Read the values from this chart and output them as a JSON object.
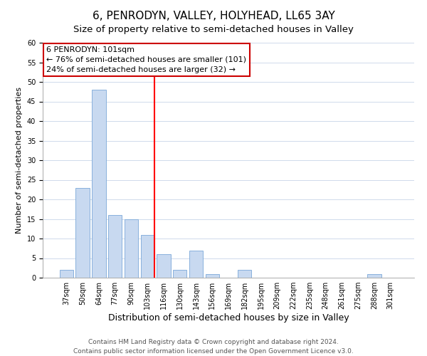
{
  "title": "6, PENRODYN, VALLEY, HOLYHEAD, LL65 3AY",
  "subtitle": "Size of property relative to semi-detached houses in Valley",
  "xlabel": "Distribution of semi-detached houses by size in Valley",
  "ylabel": "Number of semi-detached properties",
  "bar_labels": [
    "37sqm",
    "50sqm",
    "64sqm",
    "77sqm",
    "90sqm",
    "103sqm",
    "116sqm",
    "130sqm",
    "143sqm",
    "156sqm",
    "169sqm",
    "182sqm",
    "195sqm",
    "209sqm",
    "222sqm",
    "235sqm",
    "248sqm",
    "261sqm",
    "275sqm",
    "288sqm",
    "301sqm"
  ],
  "bar_heights": [
    2,
    23,
    48,
    16,
    15,
    11,
    6,
    2,
    7,
    1,
    0,
    2,
    0,
    0,
    0,
    0,
    0,
    0,
    0,
    1,
    0
  ],
  "highlight_index": 5,
  "ylim": [
    0,
    60
  ],
  "yticks": [
    0,
    5,
    10,
    15,
    20,
    25,
    30,
    35,
    40,
    45,
    50,
    55,
    60
  ],
  "bar_color": "#c8d9f0",
  "bar_edge_color": "#7aa8d8",
  "highlight_line_color": "red",
  "annotation_line1": "6 PENRODYN: 101sqm",
  "annotation_line2": "← 76% of semi-detached houses are smaller (101)",
  "annotation_line3": "24% of semi-detached houses are larger (32) →",
  "footer_line1": "Contains HM Land Registry data © Crown copyright and database right 2024.",
  "footer_line2": "Contains public sector information licensed under the Open Government Licence v3.0.",
  "title_fontsize": 11,
  "subtitle_fontsize": 9.5,
  "xlabel_fontsize": 9,
  "ylabel_fontsize": 8,
  "tick_fontsize": 7,
  "annotation_fontsize": 8,
  "footer_fontsize": 6.5
}
